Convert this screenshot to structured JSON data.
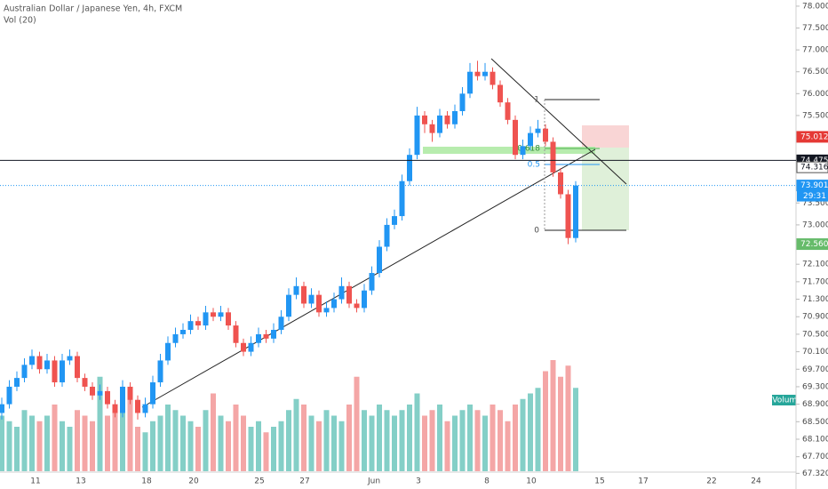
{
  "chart_data": {
    "type": "candlestick",
    "title": "Australian Dollar / Japanese Yen, 4h, FXCM",
    "subtitle": "Vol (20)",
    "volume_label": "Volume",
    "up_color": "#2196f3",
    "down_color": "#ef5350",
    "volume_up_color": "#84cfc7",
    "volume_down_color": "#f4a6a6",
    "ylim": [
      67.2,
      78.1
    ],
    "yticks": [
      {
        "value": 78,
        "label": "78.000"
      },
      {
        "value": 77.5,
        "label": "77.500"
      },
      {
        "value": 77,
        "label": "77.000"
      },
      {
        "value": 76.5,
        "label": "76.500"
      },
      {
        "value": 76,
        "label": "76.000"
      },
      {
        "value": 75.5,
        "label": "75.500"
      },
      {
        "value": 73.5,
        "label": "73.500"
      },
      {
        "value": 73,
        "label": "73.000"
      },
      {
        "value": 72.1,
        "label": "72.100"
      },
      {
        "value": 71.7,
        "label": "71.700"
      },
      {
        "value": 71.3,
        "label": "71.300"
      },
      {
        "value": 70.9,
        "label": "70.900"
      },
      {
        "value": 70.5,
        "label": "70.500"
      },
      {
        "value": 70.1,
        "label": "70.100"
      },
      {
        "value": 69.7,
        "label": "69.700"
      },
      {
        "value": 69.3,
        "label": "69.300"
      },
      {
        "value": 68.9,
        "label": "68.900"
      },
      {
        "value": 68.5,
        "label": "68.500"
      },
      {
        "value": 68.1,
        "label": "68.100"
      },
      {
        "value": 67.7,
        "label": "67.700"
      },
      {
        "value": 67.32,
        "label": "67.320"
      }
    ],
    "price_labels": [
      {
        "value": 75.012,
        "label": "75.012",
        "color": "#e53935"
      },
      {
        "value": 74.475,
        "label": "74.475",
        "color": "#131722",
        "style": "solid"
      },
      {
        "value": 74.316,
        "label": "74.316",
        "color": "#ffffff"
      },
      {
        "value": 73.901,
        "label": "73.901",
        "color": "#2196f3",
        "style": "dotted"
      },
      {
        "value": 72.56,
        "label": "72.560",
        "color": "#66bb6a"
      }
    ],
    "countdown": "29:31",
    "fib_labels": [
      "1",
      "0.618",
      "0.5",
      "0"
    ],
    "xtick_labels": [
      "11",
      "13",
      "18",
      "20",
      "25",
      "27",
      "Jun",
      "3",
      "8",
      "10",
      "15",
      "17",
      "22",
      "24"
    ],
    "candles": [
      [
        68.7,
        69.05,
        68.55,
        68.9
      ],
      [
        68.9,
        69.45,
        68.8,
        69.3
      ],
      [
        69.3,
        69.65,
        69.2,
        69.5
      ],
      [
        69.5,
        69.95,
        69.4,
        69.8
      ],
      [
        69.8,
        70.15,
        69.7,
        70.0
      ],
      [
        70.0,
        70.1,
        69.6,
        69.7
      ],
      [
        69.7,
        70.05,
        69.6,
        69.9
      ],
      [
        69.9,
        70.0,
        69.3,
        69.4
      ],
      [
        69.4,
        70.05,
        69.3,
        69.9
      ],
      [
        69.9,
        70.15,
        69.8,
        70.0
      ],
      [
        70.0,
        70.1,
        69.4,
        69.5
      ],
      [
        69.5,
        69.6,
        69.2,
        69.3
      ],
      [
        69.3,
        69.4,
        69.0,
        69.1
      ],
      [
        69.1,
        69.35,
        69.0,
        69.2
      ],
      [
        69.2,
        69.3,
        68.8,
        68.9
      ],
      [
        68.9,
        69.0,
        68.6,
        68.7
      ],
      [
        68.7,
        69.45,
        68.6,
        69.3
      ],
      [
        69.3,
        69.4,
        68.9,
        69.0
      ],
      [
        69.0,
        69.1,
        68.55,
        68.7
      ],
      [
        68.7,
        69.05,
        68.6,
        68.9
      ],
      [
        68.9,
        69.55,
        68.8,
        69.4
      ],
      [
        69.4,
        70.05,
        69.3,
        69.9
      ],
      [
        69.9,
        70.45,
        69.8,
        70.3
      ],
      [
        70.3,
        70.65,
        70.2,
        70.5
      ],
      [
        70.5,
        70.75,
        70.4,
        70.6
      ],
      [
        70.6,
        70.95,
        70.5,
        70.8
      ],
      [
        70.8,
        70.9,
        70.6,
        70.7
      ],
      [
        70.7,
        71.15,
        70.6,
        71.0
      ],
      [
        71.0,
        71.1,
        70.8,
        70.9
      ],
      [
        70.9,
        71.15,
        70.8,
        71.0
      ],
      [
        71.0,
        71.1,
        70.6,
        70.7
      ],
      [
        70.7,
        70.8,
        70.2,
        70.3
      ],
      [
        70.3,
        70.4,
        70.0,
        70.1
      ],
      [
        70.1,
        70.45,
        70.0,
        70.3
      ],
      [
        70.3,
        70.65,
        70.2,
        70.5
      ],
      [
        70.5,
        70.6,
        70.3,
        70.4
      ],
      [
        70.4,
        70.75,
        70.3,
        70.6
      ],
      [
        70.6,
        71.05,
        70.5,
        70.9
      ],
      [
        70.9,
        71.55,
        70.8,
        71.4
      ],
      [
        71.4,
        71.8,
        71.3,
        71.6
      ],
      [
        71.6,
        71.7,
        71.1,
        71.2
      ],
      [
        71.2,
        71.55,
        71.1,
        71.4
      ],
      [
        71.4,
        71.5,
        70.9,
        71.0
      ],
      [
        71.0,
        71.25,
        70.9,
        71.1
      ],
      [
        71.1,
        71.45,
        71.0,
        71.3
      ],
      [
        71.3,
        71.8,
        71.2,
        71.6
      ],
      [
        71.6,
        71.7,
        71.1,
        71.2
      ],
      [
        71.2,
        71.3,
        71.0,
        71.1
      ],
      [
        71.1,
        71.65,
        71.0,
        71.5
      ],
      [
        71.5,
        72.05,
        71.4,
        71.9
      ],
      [
        71.9,
        72.65,
        71.8,
        72.5
      ],
      [
        72.5,
        73.15,
        72.4,
        73.0
      ],
      [
        73.0,
        73.35,
        72.9,
        73.2
      ],
      [
        73.2,
        74.15,
        73.1,
        74.0
      ],
      [
        74.0,
        74.75,
        73.9,
        74.6
      ],
      [
        74.6,
        75.7,
        74.5,
        75.5
      ],
      [
        75.5,
        75.6,
        75.1,
        75.3
      ],
      [
        75.3,
        75.4,
        74.9,
        75.1
      ],
      [
        75.1,
        75.65,
        75.0,
        75.5
      ],
      [
        75.5,
        75.6,
        75.2,
        75.3
      ],
      [
        75.3,
        75.75,
        75.2,
        75.6
      ],
      [
        75.6,
        76.15,
        75.5,
        76.0
      ],
      [
        76.0,
        76.7,
        75.9,
        76.5
      ],
      [
        76.5,
        76.75,
        76.3,
        76.4
      ],
      [
        76.4,
        76.7,
        76.3,
        76.5
      ],
      [
        76.5,
        76.6,
        76.1,
        76.2
      ],
      [
        76.2,
        76.3,
        75.7,
        75.8
      ],
      [
        75.8,
        75.9,
        75.3,
        75.4
      ],
      [
        75.4,
        75.5,
        74.5,
        74.6
      ],
      [
        74.6,
        74.95,
        74.5,
        74.8
      ],
      [
        74.8,
        75.25,
        74.7,
        75.1
      ],
      [
        75.1,
        75.4,
        75.0,
        75.2
      ],
      [
        75.2,
        75.3,
        74.8,
        74.9
      ],
      [
        74.9,
        75.0,
        74.1,
        74.2
      ],
      [
        74.2,
        74.3,
        73.6,
        73.7
      ],
      [
        73.7,
        73.8,
        72.56,
        72.7
      ],
      [
        72.7,
        74.0,
        72.6,
        73.9
      ]
    ],
    "volumes": [
      50,
      45,
      40,
      55,
      50,
      45,
      50,
      60,
      45,
      40,
      55,
      50,
      45,
      85,
      50,
      60,
      55,
      75,
      40,
      35,
      45,
      50,
      60,
      55,
      50,
      45,
      40,
      55,
      70,
      50,
      45,
      60,
      50,
      40,
      45,
      35,
      40,
      45,
      55,
      65,
      60,
      50,
      45,
      55,
      50,
      45,
      60,
      85,
      55,
      50,
      60,
      55,
      50,
      55,
      60,
      70,
      50,
      55,
      60,
      45,
      50,
      55,
      60,
      55,
      50,
      60,
      55,
      45,
      60,
      65,
      70,
      75,
      90,
      100,
      85,
      95,
      75
    ]
  }
}
